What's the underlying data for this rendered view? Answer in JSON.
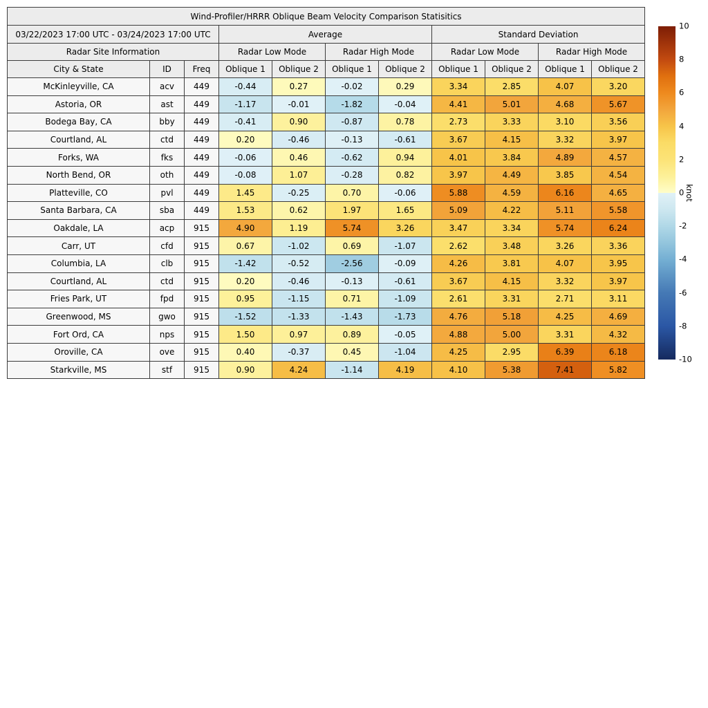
{
  "title": "Wind-Profiler/HRRR Oblique Beam Velocity Comparison Statisitics",
  "period": "03/22/2023 17:00 UTC - 03/24/2023 17:00 UTC",
  "header": {
    "average_label": "Average",
    "std_label": "Standard Deviation",
    "site_info_label": "Radar Site Information",
    "mode_labels": [
      "Radar Low Mode",
      "Radar High Mode",
      "Radar Low Mode",
      "Radar High Mode"
    ],
    "col_labels": [
      "City & State",
      "ID",
      "Freq",
      "Oblique 1",
      "Oblique 2",
      "Oblique 1",
      "Oblique 2",
      "Oblique 1",
      "Oblique 2",
      "Oblique 1",
      "Oblique 2"
    ]
  },
  "chart_data": {
    "type": "heatmap",
    "title": "Wind-Profiler/HRRR Oblique Beam Velocity Comparison Statisitics",
    "period": "03/22/2023 17:00 UTC - 03/24/2023 17:00 UTC",
    "unit": "knot",
    "column_groups": [
      "Average Radar Low Mode Oblique 1",
      "Average Radar Low Mode Oblique 2",
      "Average Radar High Mode Oblique 1",
      "Average Radar High Mode Oblique 2",
      "Std Dev Radar Low Mode Oblique 1",
      "Std Dev Radar Low Mode Oblique 2",
      "Std Dev Radar High Mode Oblique 1",
      "Std Dev Radar High Mode Oblique 2"
    ],
    "rows": [
      {
        "city": "McKinleyville, CA",
        "id": "acv",
        "freq": "449",
        "values": [
          "-0.44",
          "0.27",
          "-0.02",
          "0.29",
          "3.34",
          "2.85",
          "4.07",
          "3.20"
        ]
      },
      {
        "city": "Astoria, OR",
        "id": "ast",
        "freq": "449",
        "values": [
          "-1.17",
          "-0.01",
          "-1.82",
          "-0.04",
          "4.41",
          "5.01",
          "4.68",
          "5.67"
        ]
      },
      {
        "city": "Bodega Bay, CA",
        "id": "bby",
        "freq": "449",
        "values": [
          "-0.41",
          "0.90",
          "-0.87",
          "0.78",
          "2.73",
          "3.33",
          "3.10",
          "3.56"
        ]
      },
      {
        "city": "Courtland, AL",
        "id": "ctd",
        "freq": "449",
        "values": [
          "0.20",
          "-0.46",
          "-0.13",
          "-0.61",
          "3.67",
          "4.15",
          "3.32",
          "3.97"
        ]
      },
      {
        "city": "Forks, WA",
        "id": "fks",
        "freq": "449",
        "values": [
          "-0.06",
          "0.46",
          "-0.62",
          "0.94",
          "4.01",
          "3.84",
          "4.89",
          "4.57"
        ]
      },
      {
        "city": "North Bend, OR",
        "id": "oth",
        "freq": "449",
        "values": [
          "-0.08",
          "1.07",
          "-0.28",
          "0.82",
          "3.97",
          "4.49",
          "3.85",
          "4.54"
        ]
      },
      {
        "city": "Platteville, CO",
        "id": "pvl",
        "freq": "449",
        "values": [
          "1.45",
          "-0.25",
          "0.70",
          "-0.06",
          "5.88",
          "4.59",
          "6.16",
          "4.65"
        ]
      },
      {
        "city": "Santa Barbara, CA",
        "id": "sba",
        "freq": "449",
        "values": [
          "1.53",
          "0.62",
          "1.97",
          "1.65",
          "5.09",
          "4.22",
          "5.11",
          "5.58"
        ]
      },
      {
        "city": "Oakdale, LA",
        "id": "acp",
        "freq": "915",
        "values": [
          "4.90",
          "1.19",
          "5.74",
          "3.26",
          "3.47",
          "3.34",
          "5.74",
          "6.24"
        ]
      },
      {
        "city": "Carr, UT",
        "id": "cfd",
        "freq": "915",
        "values": [
          "0.67",
          "-1.02",
          "0.69",
          "-1.07",
          "2.62",
          "3.48",
          "3.26",
          "3.36"
        ]
      },
      {
        "city": "Columbia, LA",
        "id": "clb",
        "freq": "915",
        "values": [
          "-1.42",
          "-0.52",
          "-2.56",
          "-0.09",
          "4.26",
          "3.81",
          "4.07",
          "3.95"
        ]
      },
      {
        "city": "Courtland, AL",
        "id": "ctd",
        "freq": "915",
        "values": [
          "0.20",
          "-0.46",
          "-0.13",
          "-0.61",
          "3.67",
          "4.15",
          "3.32",
          "3.97"
        ]
      },
      {
        "city": "Fries Park, UT",
        "id": "fpd",
        "freq": "915",
        "values": [
          "0.95",
          "-1.15",
          "0.71",
          "-1.09",
          "2.61",
          "3.31",
          "2.71",
          "3.11"
        ]
      },
      {
        "city": "Greenwood, MS",
        "id": "gwo",
        "freq": "915",
        "values": [
          "-1.52",
          "-1.33",
          "-1.43",
          "-1.73",
          "4.76",
          "5.18",
          "4.25",
          "4.69"
        ]
      },
      {
        "city": "Fort Ord, CA",
        "id": "nps",
        "freq": "915",
        "values": [
          "1.50",
          "0.97",
          "0.89",
          "-0.05",
          "4.88",
          "5.00",
          "3.31",
          "4.32"
        ]
      },
      {
        "city": "Oroville, CA",
        "id": "ove",
        "freq": "915",
        "values": [
          "0.40",
          "-0.37",
          "0.45",
          "-1.04",
          "4.25",
          "2.95",
          "6.39",
          "6.18"
        ]
      },
      {
        "city": "Starkville, MS",
        "id": "stf",
        "freq": "915",
        "values": [
          "0.90",
          "4.24",
          "-1.14",
          "4.19",
          "4.10",
          "5.38",
          "7.41",
          "5.82"
        ]
      }
    ],
    "colorbar": {
      "min": -10,
      "max": 10,
      "ticks": [
        "10",
        "8",
        "6",
        "4",
        "2",
        "0",
        "-2",
        "-4",
        "-6",
        "-8",
        "-10"
      ],
      "unit": "knot",
      "legend_position": "right"
    }
  },
  "colors": {
    "header_bg": "#ececec",
    "label_bg": "#f7f7f7",
    "border": "#3c3c3c",
    "colormap_stops": [
      [
        -10,
        "#152a5e"
      ],
      [
        -8,
        "#2b57a5"
      ],
      [
        -6,
        "#4579b5"
      ],
      [
        -4,
        "#74afd3"
      ],
      [
        -3,
        "#93c5dd"
      ],
      [
        -2,
        "#b0d8e7"
      ],
      [
        -1,
        "#cde7f0"
      ],
      [
        -0.01,
        "#e0f1f7"
      ],
      [
        0.01,
        "#fefdc8"
      ],
      [
        1,
        "#fdf098"
      ],
      [
        2,
        "#fce377"
      ],
      [
        3,
        "#fbdc66"
      ],
      [
        4,
        "#f7c449"
      ],
      [
        5,
        "#f2a53c"
      ],
      [
        6,
        "#ee8a1e"
      ],
      [
        7,
        "#e0700f"
      ],
      [
        8,
        "#c24a10"
      ],
      [
        10,
        "#7d1d05"
      ]
    ]
  }
}
